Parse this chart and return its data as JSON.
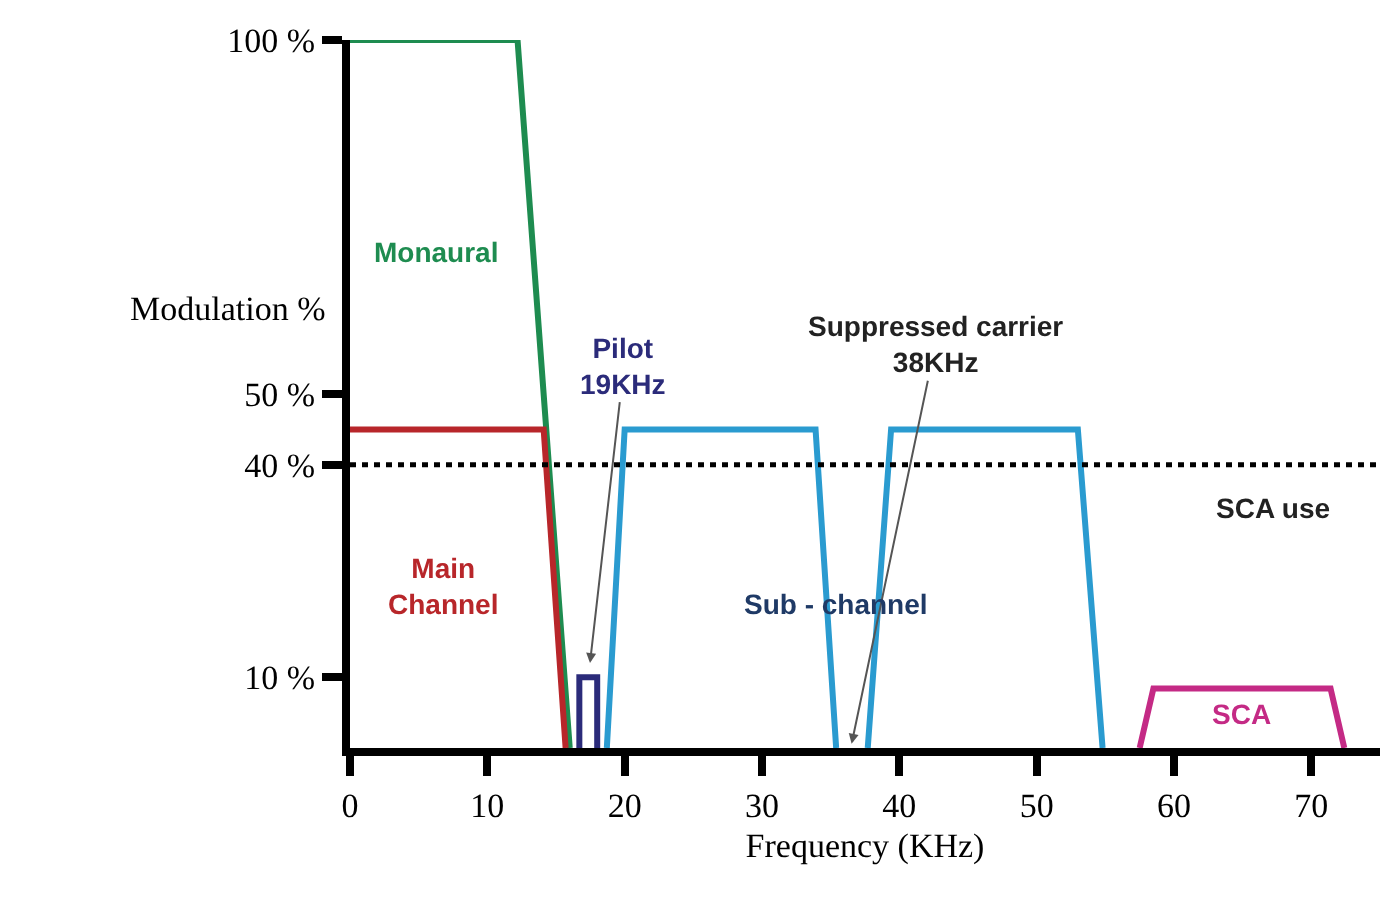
{
  "chart_data": {
    "type": "line",
    "xlabel": "Frequency (KHz)",
    "ylabel": "Modulation %",
    "xlim": [
      0,
      75
    ],
    "xticks": [
      0,
      10,
      20,
      30,
      40,
      50,
      60,
      70
    ],
    "ylim": [
      0,
      100
    ],
    "yticks": [
      {
        "value": 10,
        "label": "10 %"
      },
      {
        "value": 40,
        "label": "40 %"
      },
      {
        "value": 50,
        "label": "50 %"
      },
      {
        "value": 100,
        "label": "100 %"
      }
    ],
    "grid": false,
    "marker": "none",
    "line_style": "solid",
    "series": [
      {
        "color": "#1e8c50",
        "x": [
          0,
          12.2,
          16
        ],
        "values": [
          100,
          100,
          0
        ]
      },
      {
        "color": "#b8262a",
        "x": [
          0,
          14.1,
          15.7
        ],
        "values": [
          45,
          45,
          0
        ]
      },
      {
        "color": "#2b2b7a",
        "x": [
          16.7,
          16.7,
          18,
          18
        ],
        "values": [
          0,
          10,
          10,
          0
        ]
      },
      {
        "color": "#2a9bd0",
        "x": [
          18.7,
          20,
          33.9,
          35.4
        ],
        "values": [
          0,
          45,
          45,
          0
        ]
      },
      {
        "color": "#2a9bd0",
        "x": [
          37.7,
          39.4,
          53,
          54.8
        ],
        "values": [
          0,
          45,
          45,
          0
        ]
      },
      {
        "color": "#c42a85",
        "x": [
          57.5,
          58.5,
          71.4,
          72.4
        ],
        "values": [
          0,
          8.4,
          8.4,
          0
        ]
      }
    ],
    "ref_lines": [
      {
        "axis": "y",
        "value": 40,
        "label": "SCA use",
        "color": "#000000",
        "line_style": "dotted"
      }
    ],
    "annotations": [
      "Monaural",
      "Main\nChannel",
      "Pilot\n19KHz",
      "Suppressed carrier\n38KHz",
      "Sub - channel",
      "SCA"
    ]
  }
}
